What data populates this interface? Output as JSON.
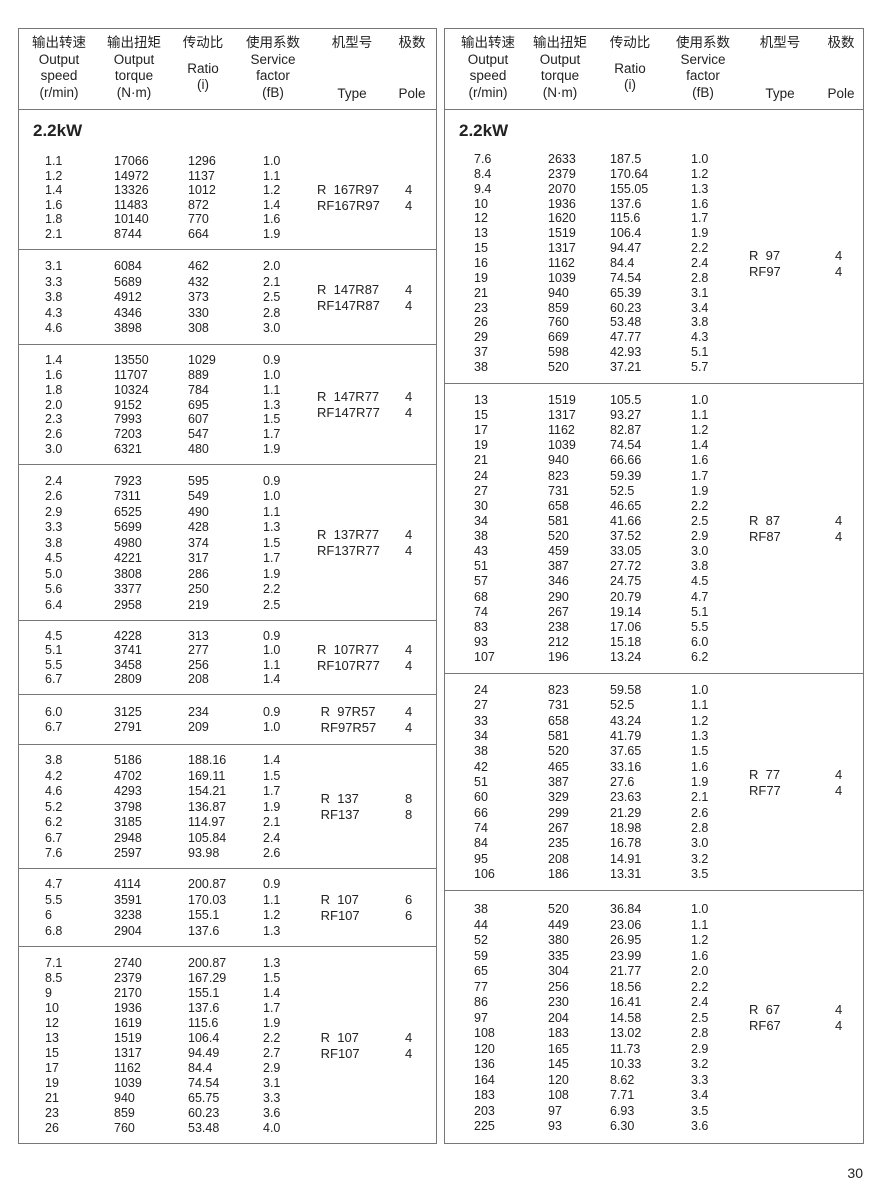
{
  "header": {
    "columns": [
      {
        "zh": "输出转速",
        "en": [
          "Output",
          "speed",
          "(r/min)"
        ]
      },
      {
        "zh": "输出扭矩",
        "en": [
          "Output",
          "torque",
          "(N·m)"
        ]
      },
      {
        "zh": "传动比",
        "en": [
          "Ratio",
          "(i)"
        ]
      },
      {
        "zh": "使用系数",
        "en": [
          "Service",
          "factor",
          "(fB)"
        ]
      },
      {
        "zh": "机型号",
        "en": [
          "Type"
        ]
      },
      {
        "zh": "极数",
        "en": [
          "Pole"
        ]
      }
    ]
  },
  "left": {
    "title": "2.2kW",
    "groups": [
      {
        "type": [
          "R  167R97",
          "RF167R97"
        ],
        "pole": [
          "4",
          "4"
        ],
        "rows": [
          [
            "1.1",
            "17066",
            "1296",
            "1.0"
          ],
          [
            "1.2",
            "14972",
            "1137",
            "1.1"
          ],
          [
            "1.4",
            "13326",
            "1012",
            "1.2"
          ],
          [
            "1.6",
            "11483",
            "872",
            "1.4"
          ],
          [
            "1.8",
            "10140",
            "770",
            "1.6"
          ],
          [
            "2.1",
            "8744",
            "664",
            "1.9"
          ]
        ]
      },
      {
        "type": [
          "R  147R87",
          "RF147R87"
        ],
        "pole": [
          "4",
          "4"
        ],
        "rows": [
          [
            "3.1",
            "6084",
            "462",
            "2.0"
          ],
          [
            "3.3",
            "5689",
            "432",
            "2.1"
          ],
          [
            "3.8",
            "4912",
            "373",
            "2.5"
          ],
          [
            "4.3",
            "4346",
            "330",
            "2.8"
          ],
          [
            "4.6",
            "3898",
            "308",
            "3.0"
          ]
        ]
      },
      {
        "type": [
          "R  147R77",
          "RF147R77"
        ],
        "pole": [
          "4",
          "4"
        ],
        "rows": [
          [
            "1.4",
            "13550",
            "1029",
            "0.9"
          ],
          [
            "1.6",
            "11707",
            "889",
            "1.0"
          ],
          [
            "1.8",
            "10324",
            "784",
            "1.1"
          ],
          [
            "2.0",
            "9152",
            "695",
            "1.3"
          ],
          [
            "2.3",
            "7993",
            "607",
            "1.5"
          ],
          [
            "2.6",
            "7203",
            "547",
            "1.7"
          ],
          [
            "3.0",
            "6321",
            "480",
            "1.9"
          ]
        ]
      },
      {
        "type": [
          "R  137R77",
          "RF137R77"
        ],
        "pole": [
          "4",
          "4"
        ],
        "rows": [
          [
            "2.4",
            "7923",
            "595",
            "0.9"
          ],
          [
            "2.6",
            "7311",
            "549",
            "1.0"
          ],
          [
            "2.9",
            "6525",
            "490",
            "1.1"
          ],
          [
            "3.3",
            "5699",
            "428",
            "1.3"
          ],
          [
            "3.8",
            "4980",
            "374",
            "1.5"
          ],
          [
            "4.5",
            "4221",
            "317",
            "1.7"
          ],
          [
            "5.0",
            "3808",
            "286",
            "1.9"
          ],
          [
            "5.6",
            "3377",
            "250",
            "2.2"
          ],
          [
            "6.4",
            "2958",
            "219",
            "2.5"
          ]
        ]
      },
      {
        "type": [
          "R  107R77",
          "RF107R77"
        ],
        "pole": [
          "4",
          "4"
        ],
        "rows": [
          [
            "4.5",
            "4228",
            "313",
            "0.9"
          ],
          [
            "5.1",
            "3741",
            "277",
            "1.0"
          ],
          [
            "5.5",
            "3458",
            "256",
            "1.1"
          ],
          [
            "6.7",
            "2809",
            "208",
            "1.4"
          ]
        ]
      },
      {
        "type": [
          " R  97R57",
          " RF97R57"
        ],
        "pole": [
          "4",
          "4"
        ],
        "rows": [
          [
            "6.0",
            "3125",
            "234",
            "0.9"
          ],
          [
            "6.7",
            "2791",
            "209",
            "1.0"
          ]
        ]
      },
      {
        "type": [
          " R  137",
          " RF137"
        ],
        "pole": [
          "8",
          "8"
        ],
        "rows": [
          [
            "3.8",
            "5186",
            "188.16",
            "1.4"
          ],
          [
            "4.2",
            "4702",
            "169.11",
            "1.5"
          ],
          [
            "4.6",
            "4293",
            "154.21",
            "1.7"
          ],
          [
            "5.2",
            "3798",
            "136.87",
            "1.9"
          ],
          [
            "6.2",
            "3185",
            "114.97",
            "2.1"
          ],
          [
            "6.7",
            "2948",
            "105.84",
            "2.4"
          ],
          [
            "7.6",
            "2597",
            "93.98",
            "2.6"
          ]
        ]
      },
      {
        "type": [
          " R  107",
          " RF107"
        ],
        "pole": [
          "6",
          "6"
        ],
        "rows": [
          [
            "4.7",
            "4114",
            "200.87",
            "0.9"
          ],
          [
            "5.5",
            "3591",
            "170.03",
            "1.1"
          ],
          [
            "6",
            "3238",
            "155.1",
            "1.2"
          ],
          [
            "6.8",
            "2904",
            "137.6",
            "1.3"
          ]
        ]
      },
      {
        "type": [
          " R  107",
          " RF107"
        ],
        "pole": [
          "4",
          "4"
        ],
        "rows": [
          [
            "7.1",
            "2740",
            "200.87",
            "1.3"
          ],
          [
            "8.5",
            "2379",
            "167.29",
            "1.5"
          ],
          [
            "9",
            "2170",
            "155.1",
            "1.4"
          ],
          [
            "10",
            "1936",
            "137.6",
            "1.7"
          ],
          [
            "12",
            "1619",
            "115.6",
            "1.9"
          ],
          [
            "13",
            "1519",
            "106.4",
            "2.2"
          ],
          [
            "15",
            "1317",
            "94.49",
            "2.7"
          ],
          [
            "17",
            "1162",
            "84.4",
            "2.9"
          ],
          [
            "19",
            "1039",
            "74.54",
            "3.1"
          ],
          [
            "21",
            "940",
            "65.75",
            "3.3"
          ],
          [
            "23",
            "859",
            "60.23",
            "3.6"
          ],
          [
            "26",
            "760",
            "53.48",
            "4.0"
          ]
        ]
      }
    ]
  },
  "right": {
    "title": "2.2kW",
    "groups": [
      {
        "type": [
          "R  97",
          "RF97"
        ],
        "pole": [
          "4",
          "4"
        ],
        "rows": [
          [
            "7.6",
            "2633",
            "187.5",
            "1.0"
          ],
          [
            "8.4",
            "2379",
            "170.64",
            "1.2"
          ],
          [
            "9.4",
            "2070",
            "155.05",
            "1.3"
          ],
          [
            "10",
            "1936",
            "137.6",
            "1.6"
          ],
          [
            "12",
            "1620",
            "115.6",
            "1.7"
          ],
          [
            "13",
            "1519",
            "106.4",
            "1.9"
          ],
          [
            "15",
            "1317",
            "94.47",
            "2.2"
          ],
          [
            "16",
            "1162",
            "84.4",
            "2.4"
          ],
          [
            "19",
            "1039",
            "74.54",
            "2.8"
          ],
          [
            "21",
            "940",
            "65.39",
            "3.1"
          ],
          [
            "23",
            "859",
            "60.23",
            "3.4"
          ],
          [
            "26",
            "760",
            "53.48",
            "3.8"
          ],
          [
            "29",
            "669",
            "47.77",
            "4.3"
          ],
          [
            "37",
            "598",
            "42.93",
            "5.1"
          ],
          [
            "38",
            "520",
            "37.21",
            "5.7"
          ]
        ]
      },
      {
        "type": [
          "R  87",
          "RF87"
        ],
        "pole": [
          "4",
          "4"
        ],
        "rows": [
          [
            "13",
            "1519",
            "105.5",
            "1.0"
          ],
          [
            "15",
            "1317",
            "93.27",
            "1.1"
          ],
          [
            "17",
            "1162",
            "82.87",
            "1.2"
          ],
          [
            "19",
            "1039",
            "74.54",
            "1.4"
          ],
          [
            "21",
            "940",
            "66.66",
            "1.6"
          ],
          [
            "24",
            "823",
            "59.39",
            "1.7"
          ],
          [
            "27",
            "731",
            "52.5",
            "1.9"
          ],
          [
            "30",
            "658",
            "46.65",
            "2.2"
          ],
          [
            "34",
            "581",
            "41.66",
            "2.5"
          ],
          [
            "38",
            "520",
            "37.52",
            "2.9"
          ],
          [
            "43",
            "459",
            "33.05",
            "3.0"
          ],
          [
            "51",
            "387",
            "27.72",
            "3.8"
          ],
          [
            "57",
            "346",
            "24.75",
            "4.5"
          ],
          [
            "68",
            "290",
            "20.79",
            "4.7"
          ],
          [
            "74",
            "267",
            "19.14",
            "5.1"
          ],
          [
            "83",
            "238",
            "17.06",
            "5.5"
          ],
          [
            "93",
            "212",
            "15.18",
            "6.0"
          ],
          [
            "107",
            "196",
            "13.24",
            "6.2"
          ]
        ]
      },
      {
        "type": [
          "R  77",
          "RF77"
        ],
        "pole": [
          "4",
          "4"
        ],
        "rows": [
          [
            "24",
            "823",
            "59.58",
            "1.0"
          ],
          [
            "27",
            "731",
            "52.5",
            "1.1"
          ],
          [
            "33",
            "658",
            "43.24",
            "1.2"
          ],
          [
            "34",
            "581",
            "41.79",
            "1.3"
          ],
          [
            "38",
            "520",
            "37.65",
            "1.5"
          ],
          [
            "42",
            "465",
            "33.16",
            "1.6"
          ],
          [
            "51",
            "387",
            "27.6",
            "1.9"
          ],
          [
            "60",
            "329",
            "23.63",
            "2.1"
          ],
          [
            "66",
            "299",
            "21.29",
            "2.6"
          ],
          [
            "74",
            "267",
            "18.98",
            "2.8"
          ],
          [
            "84",
            "235",
            "16.78",
            "3.0"
          ],
          [
            "95",
            "208",
            "14.91",
            "3.2"
          ],
          [
            "106",
            "186",
            "13.31",
            "3.5"
          ]
        ]
      },
      {
        "type": [
          "R  67",
          "RF67"
        ],
        "pole": [
          "4",
          "4"
        ],
        "rows": [
          [
            "38",
            "520",
            "36.84",
            "1.0"
          ],
          [
            "44",
            "449",
            "23.06",
            "1.1"
          ],
          [
            "52",
            "380",
            "26.95",
            "1.2"
          ],
          [
            "59",
            "335",
            "23.99",
            "1.6"
          ],
          [
            "65",
            "304",
            "21.77",
            "2.0"
          ],
          [
            "77",
            "256",
            "18.56",
            "2.2"
          ],
          [
            "86",
            "230",
            "16.41",
            "2.4"
          ],
          [
            "97",
            "204",
            "14.58",
            "2.5"
          ],
          [
            "108",
            "183",
            "13.02",
            "2.8"
          ],
          [
            "120",
            "165",
            "11.73",
            "2.9"
          ],
          [
            "136",
            "145",
            "10.33",
            "3.2"
          ],
          [
            "164",
            "120",
            "8.62",
            "3.3"
          ],
          [
            "183",
            "108",
            "7.71",
            "3.4"
          ],
          [
            "203",
            "97",
            "6.93",
            "3.5"
          ],
          [
            "225",
            "93",
            "6.30",
            "3.6"
          ]
        ]
      }
    ]
  },
  "page_number": "30"
}
